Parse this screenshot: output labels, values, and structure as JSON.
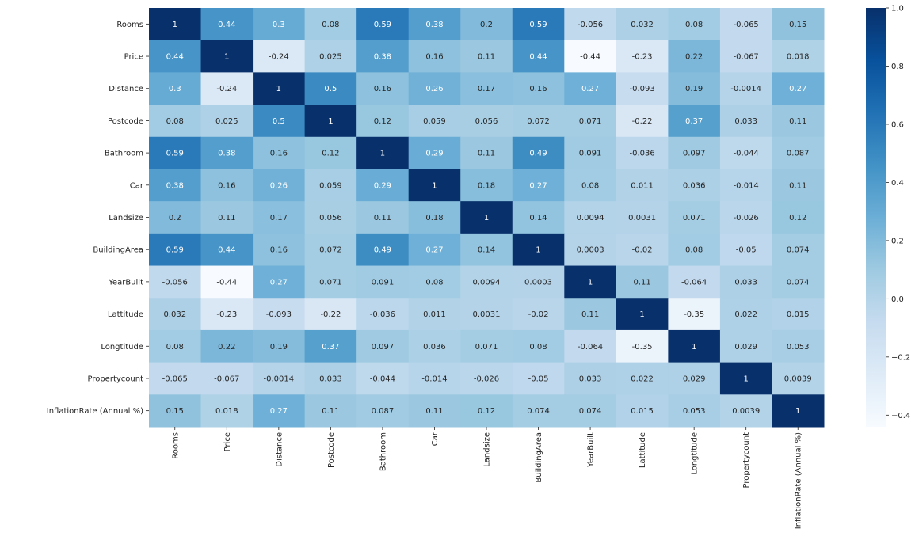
{
  "chart_data": {
    "type": "heatmap",
    "title": "",
    "colormap": "Blues",
    "labels": [
      "Rooms",
      "Price",
      "Distance",
      "Postcode",
      "Bathroom",
      "Car",
      "Landsize",
      "BuildingArea",
      "YearBuilt",
      "Lattitude",
      "Longtitude",
      "Propertycount",
      "InflationRate (Annual %)"
    ],
    "values": [
      [
        "1",
        "0.44",
        "0.3",
        "0.08",
        "0.59",
        "0.38",
        "0.2",
        "0.59",
        "-0.056",
        "0.032",
        "0.08",
        "-0.065",
        "0.15"
      ],
      [
        "0.44",
        "1",
        "-0.24",
        "0.025",
        "0.38",
        "0.16",
        "0.11",
        "0.44",
        "-0.44",
        "-0.23",
        "0.22",
        "-0.067",
        "0.018"
      ],
      [
        "0.3",
        "-0.24",
        "1",
        "0.5",
        "0.16",
        "0.26",
        "0.17",
        "0.16",
        "0.27",
        "-0.093",
        "0.19",
        "-0.0014",
        "0.27"
      ],
      [
        "0.08",
        "0.025",
        "0.5",
        "1",
        "0.12",
        "0.059",
        "0.056",
        "0.072",
        "0.071",
        "-0.22",
        "0.37",
        "0.033",
        "0.11"
      ],
      [
        "0.59",
        "0.38",
        "0.16",
        "0.12",
        "1",
        "0.29",
        "0.11",
        "0.49",
        "0.091",
        "-0.036",
        "0.097",
        "-0.044",
        "0.087"
      ],
      [
        "0.38",
        "0.16",
        "0.26",
        "0.059",
        "0.29",
        "1",
        "0.18",
        "0.27",
        "0.08",
        "0.011",
        "0.036",
        "-0.014",
        "0.11"
      ],
      [
        "0.2",
        "0.11",
        "0.17",
        "0.056",
        "0.11",
        "0.18",
        "1",
        "0.14",
        "0.0094",
        "0.0031",
        "0.071",
        "-0.026",
        "0.12"
      ],
      [
        "0.59",
        "0.44",
        "0.16",
        "0.072",
        "0.49",
        "0.27",
        "0.14",
        "1",
        "0.0003",
        "-0.02",
        "0.08",
        "-0.05",
        "0.074"
      ],
      [
        "-0.056",
        "-0.44",
        "0.27",
        "0.071",
        "0.091",
        "0.08",
        "0.0094",
        "0.0003",
        "1",
        "0.11",
        "-0.064",
        "0.033",
        "0.074"
      ],
      [
        "0.032",
        "-0.23",
        "-0.093",
        "-0.22",
        "-0.036",
        "0.011",
        "0.0031",
        "-0.02",
        "0.11",
        "1",
        "-0.35",
        "0.022",
        "0.015"
      ],
      [
        "0.08",
        "0.22",
        "0.19",
        "0.37",
        "0.097",
        "0.036",
        "0.071",
        "0.08",
        "-0.064",
        "-0.35",
        "1",
        "0.029",
        "0.053"
      ],
      [
        "-0.065",
        "-0.067",
        "-0.0014",
        "0.033",
        "-0.044",
        "-0.014",
        "-0.026",
        "-0.05",
        "0.033",
        "0.022",
        "0.029",
        "1",
        "0.0039"
      ],
      [
        "0.15",
        "0.018",
        "0.27",
        "0.11",
        "0.087",
        "0.11",
        "0.12",
        "0.074",
        "0.074",
        "0.015",
        "0.053",
        "0.0039",
        "1"
      ]
    ],
    "colorbar": {
      "range": [
        -0.44,
        1.0
      ],
      "ticks": [
        "1.0",
        "0.8",
        "0.6",
        "0.4",
        "0.2",
        "0.0",
        "−0.2",
        "−0.4"
      ],
      "tick_values": [
        1.0,
        0.8,
        0.6,
        0.4,
        0.2,
        0.0,
        -0.2,
        -0.4
      ]
    }
  }
}
